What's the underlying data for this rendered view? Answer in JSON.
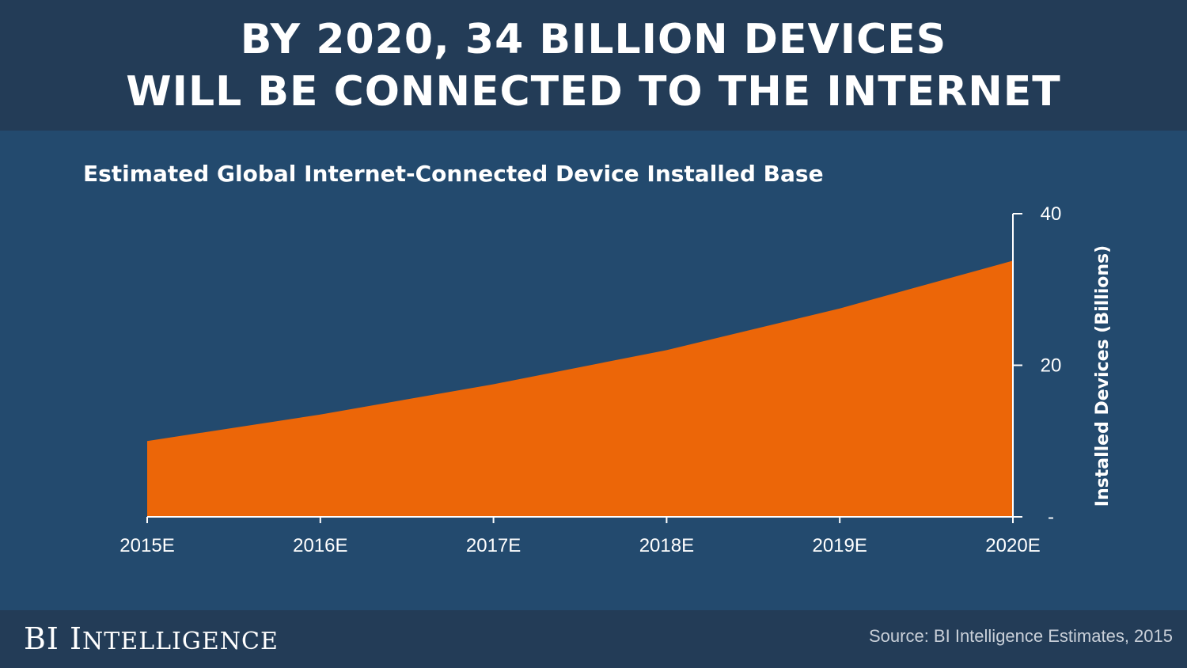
{
  "header": {
    "line1": "BY 2020, 34 BILLION DEVICES",
    "line2": "WILL BE CONNECTED TO THE INTERNET"
  },
  "colors": {
    "header_bg": "#233c57",
    "main_bg": "#234a6e",
    "area_fill": "#ec6608",
    "axis": "#ffffff"
  },
  "chart_data": {
    "type": "area",
    "title": "Estimated Global Internet-Connected Device Installed Base",
    "categories": [
      "2015E",
      "2016E",
      "2017E",
      "2018E",
      "2019E",
      "2020E"
    ],
    "series": [
      {
        "values": [
          10,
          13.5,
          17.5,
          22,
          27.5,
          33.8
        ]
      }
    ],
    "ylabel": "Installed Devices (Billions)",
    "ylim": [
      0,
      40
    ],
    "yticks": [
      "-",
      "20",
      "40"
    ],
    "yaxis_side": "right",
    "grid": false,
    "legend": "none"
  },
  "footer": {
    "brand_bi": "BI",
    "brand_first": "I",
    "brand_rest": "NTELLIGENCE",
    "source": "Source: BI Intelligence Estimates, 2015"
  }
}
